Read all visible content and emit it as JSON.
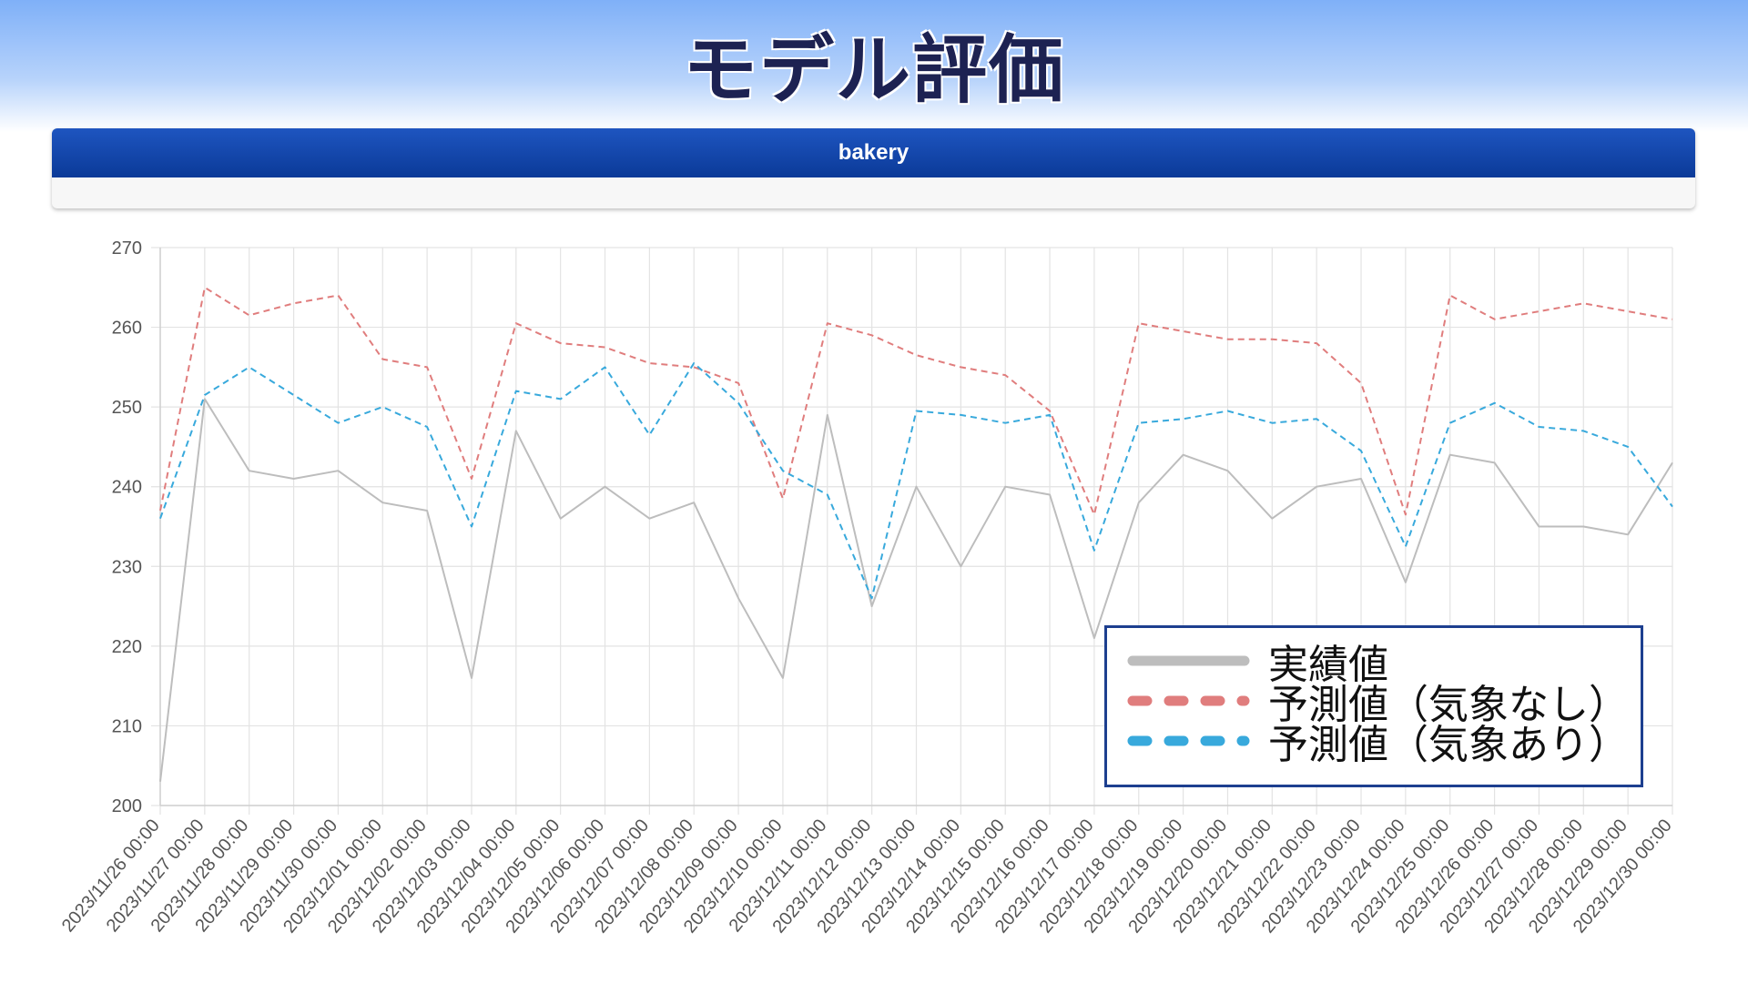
{
  "page": {
    "title": "モデル評価",
    "panel_title": "bakery"
  },
  "colors": {
    "actual": "#bdbdbd",
    "pred_no_weather": "#e07d7d",
    "pred_weather": "#38a9dc",
    "header": "#0d3c9c",
    "legend_border": "#1d3f8f"
  },
  "legend": {
    "items": [
      {
        "label": "実績値",
        "style": "solid",
        "color": "#bdbdbd"
      },
      {
        "label": "予測値（気象なし）",
        "style": "dashed",
        "color": "#e07d7d"
      },
      {
        "label": "予測値（気象あり）",
        "style": "dashed",
        "color": "#38a9dc"
      }
    ]
  },
  "chart_data": {
    "type": "line",
    "title": "",
    "xlabel": "",
    "ylabel": "",
    "ylim": [
      200,
      270
    ],
    "yticks": [
      200,
      210,
      220,
      230,
      240,
      250,
      260,
      270
    ],
    "grid": true,
    "legend_position": "bottom-right",
    "x": [
      "2023/11/26 00:00",
      "2023/11/27 00:00",
      "2023/11/28 00:00",
      "2023/11/29 00:00",
      "2023/11/30 00:00",
      "2023/12/01 00:00",
      "2023/12/02 00:00",
      "2023/12/03 00:00",
      "2023/12/04 00:00",
      "2023/12/05 00:00",
      "2023/12/06 00:00",
      "2023/12/07 00:00",
      "2023/12/08 00:00",
      "2023/12/09 00:00",
      "2023/12/10 00:00",
      "2023/12/11 00:00",
      "2023/12/12 00:00",
      "2023/12/13 00:00",
      "2023/12/14 00:00",
      "2023/12/15 00:00",
      "2023/12/16 00:00",
      "2023/12/17 00:00",
      "2023/12/18 00:00",
      "2023/12/19 00:00",
      "2023/12/20 00:00",
      "2023/12/21 00:00",
      "2023/12/22 00:00",
      "2023/12/23 00:00",
      "2023/12/24 00:00",
      "2023/12/25 00:00",
      "2023/12/26 00:00",
      "2023/12/27 00:00",
      "2023/12/28 00:00",
      "2023/12/29 00:00",
      "2023/12/30 00:00"
    ],
    "series": [
      {
        "name": "実績値",
        "style": "solid",
        "values": [
          203,
          251,
          242,
          241,
          242,
          238,
          237,
          216,
          247,
          236,
          240,
          236,
          238,
          226,
          216,
          249,
          225,
          240,
          230,
          240,
          239,
          221,
          238,
          244,
          242,
          236,
          240,
          241,
          228,
          244,
          243,
          235,
          235,
          234,
          243
        ]
      },
      {
        "name": "予測値（気象なし）",
        "style": "dashed",
        "values": [
          237,
          265,
          261.5,
          263,
          264,
          256,
          255,
          241,
          260.5,
          258,
          257.5,
          255.5,
          255,
          253,
          238.5,
          260.5,
          259,
          256.5,
          255,
          254,
          249.5,
          236.5,
          260.5,
          259.5,
          258.5,
          258.5,
          258,
          253,
          236.5,
          264,
          261,
          262,
          263,
          262,
          261
        ]
      },
      {
        "name": "予測値（気象あり）",
        "style": "dashed",
        "values": [
          236,
          251.5,
          255,
          251.5,
          248,
          250,
          247.5,
          235,
          252,
          251,
          255,
          246.5,
          255.5,
          250.5,
          242,
          239,
          226,
          249.5,
          249,
          248,
          249,
          232,
          248,
          248.5,
          249.5,
          248,
          248.5,
          244.5,
          232.5,
          248,
          250.5,
          247.5,
          247,
          245,
          237.5
        ]
      }
    ]
  }
}
